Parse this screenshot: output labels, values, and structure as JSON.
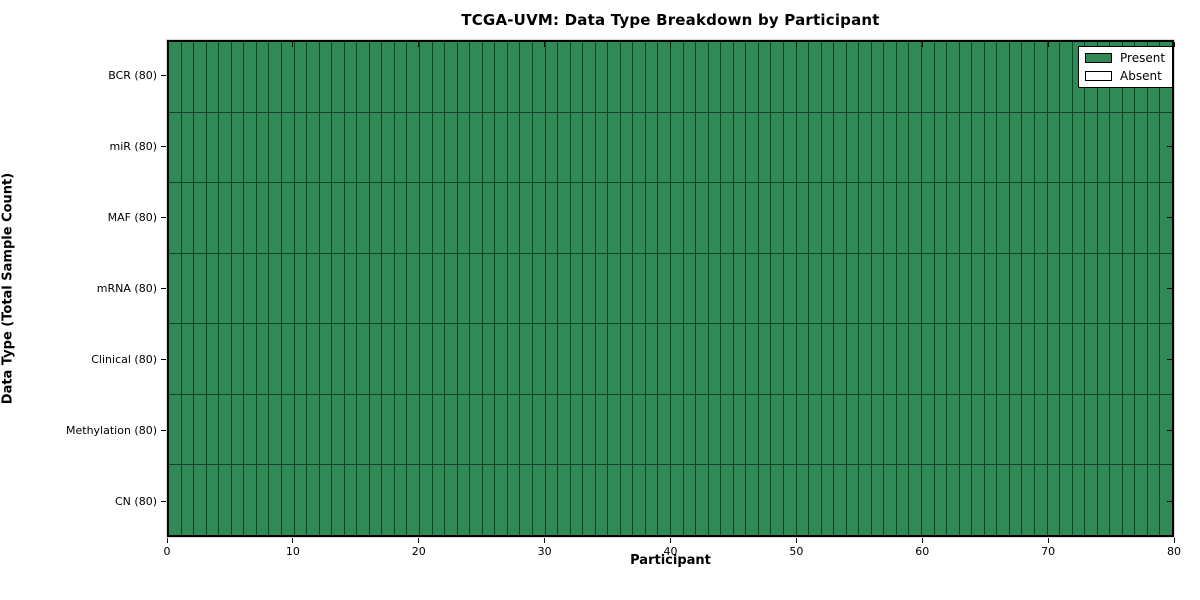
{
  "figure": {
    "title": "TCGA-UVM: Data Type Breakdown by Participant",
    "x_axis_label": "Participant",
    "y_axis_label": "Data Type (Total Sample Count)"
  },
  "legend": {
    "position": "upper right",
    "entries": [
      {
        "label": "Present",
        "color": "#2f8a56"
      },
      {
        "label": "Absent",
        "color": "#ffffff"
      }
    ]
  },
  "chart_data": {
    "type": "heatmap",
    "title": "TCGA-UVM: Data Type Breakdown by Participant",
    "xlabel": "Participant",
    "ylabel": "Data Type (Total Sample Count)",
    "xlim": [
      0,
      80
    ],
    "x_ticks": [
      0,
      10,
      20,
      30,
      40,
      50,
      60,
      70,
      80
    ],
    "n_participants": 80,
    "rows": [
      {
        "label": "BCR (80)",
        "data_type": "BCR",
        "total_samples": 80,
        "present_count": 80,
        "absent_count": 0
      },
      {
        "label": "miR (80)",
        "data_type": "miR",
        "total_samples": 80,
        "present_count": 80,
        "absent_count": 0
      },
      {
        "label": "MAF (80)",
        "data_type": "MAF",
        "total_samples": 80,
        "present_count": 80,
        "absent_count": 0
      },
      {
        "label": "mRNA (80)",
        "data_type": "mRNA",
        "total_samples": 80,
        "present_count": 80,
        "absent_count": 0
      },
      {
        "label": "Clinical (80)",
        "data_type": "Clinical",
        "total_samples": 80,
        "present_count": 80,
        "absent_count": 0
      },
      {
        "label": "Methylation (80)",
        "data_type": "Methylation",
        "total_samples": 80,
        "present_count": 80,
        "absent_count": 0
      },
      {
        "label": "CN (80)",
        "data_type": "CN",
        "total_samples": 80,
        "present_count": 80,
        "absent_count": 0
      }
    ],
    "colors": {
      "present": "#2f8a56",
      "absent": "#ffffff",
      "cell_grid_line": "#17402a",
      "axis": "#000000"
    },
    "grid": "per-cell borders",
    "legend_entries": [
      "Present",
      "Absent"
    ]
  }
}
